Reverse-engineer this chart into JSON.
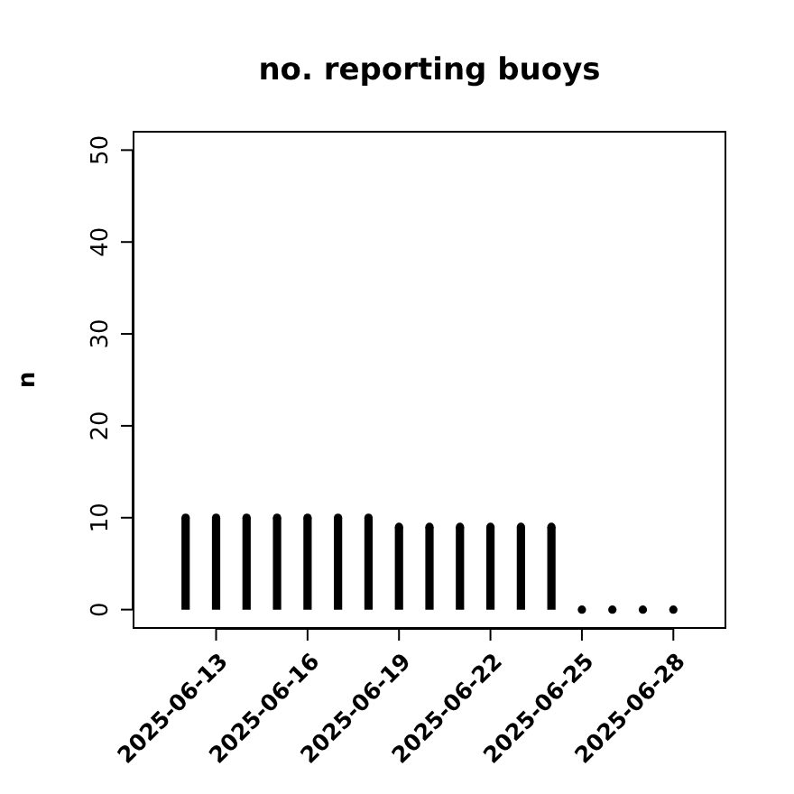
{
  "chart_data": {
    "type": "lollipop",
    "title": "no. reporting buoys",
    "ylabel": "n",
    "x": [
      "2025-06-12",
      "2025-06-13",
      "2025-06-14",
      "2025-06-15",
      "2025-06-16",
      "2025-06-17",
      "2025-06-18",
      "2025-06-19",
      "2025-06-20",
      "2025-06-21",
      "2025-06-22",
      "2025-06-23",
      "2025-06-24",
      "2025-06-25",
      "2025-06-26",
      "2025-06-27",
      "2025-06-28"
    ],
    "values": [
      10,
      10,
      10,
      10,
      10,
      10,
      10,
      9,
      9,
      9,
      9,
      9,
      9,
      0,
      0,
      0,
      0
    ],
    "color": "#000000",
    "marker": "circle",
    "xlim": [
      "2025-06-10T07:00",
      "2025-06-29T17:00"
    ],
    "ylim": [
      -2,
      52
    ],
    "yticks": [
      0,
      10,
      20,
      30,
      40,
      50
    ],
    "xticks": [
      "2025-06-13",
      "2025-06-16",
      "2025-06-19",
      "2025-06-22",
      "2025-06-25",
      "2025-06-28"
    ]
  }
}
